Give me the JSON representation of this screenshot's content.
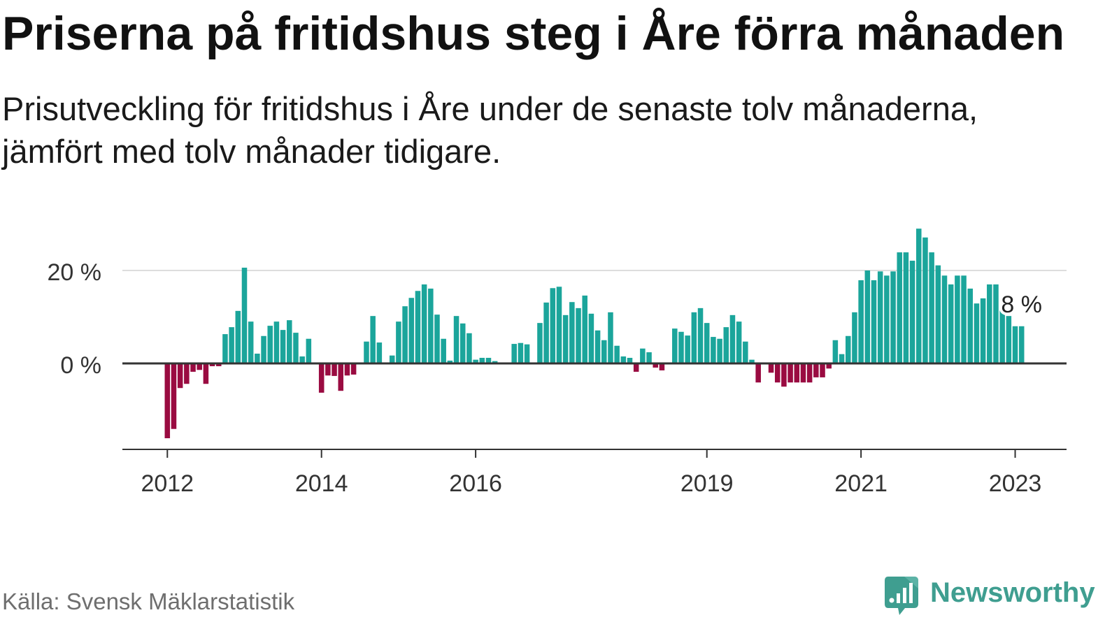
{
  "logo": {
    "text": "Newsworthy",
    "icon": "newsworthy-logo-icon",
    "color": "#3f9e90"
  },
  "chart_data": {
    "type": "bar",
    "title": "Priserna på fritidshus steg i Åre förra månaden",
    "subtitle": "Prisutveckling för fritidshus i Åre under de senaste tolv månaderna, jämfört med tolv månader tidigare.",
    "source": "Källa: Svensk Mäklarstatistik",
    "x": [
      "2012-01",
      "2012-02",
      "2012-03",
      "2012-04",
      "2012-05",
      "2012-06",
      "2012-07",
      "2012-08",
      "2012-09",
      "2012-10",
      "2012-11",
      "2012-12",
      "2013-01",
      "2013-02",
      "2013-03",
      "2013-04",
      "2013-05",
      "2013-06",
      "2013-07",
      "2013-08",
      "2013-09",
      "2013-10",
      "2013-11",
      "2013-12",
      "2014-01",
      "2014-02",
      "2014-03",
      "2014-04",
      "2014-05",
      "2014-06",
      "2014-07",
      "2014-08",
      "2014-09",
      "2014-10",
      "2014-11",
      "2014-12",
      "2015-01",
      "2015-02",
      "2015-03",
      "2015-04",
      "2015-05",
      "2015-06",
      "2015-07",
      "2015-08",
      "2015-09",
      "2015-10",
      "2015-11",
      "2015-12",
      "2016-01",
      "2016-02",
      "2016-03",
      "2016-04",
      "2016-05",
      "2016-06",
      "2016-07",
      "2016-08",
      "2016-09",
      "2016-10",
      "2016-11",
      "2016-12",
      "2017-01",
      "2017-02",
      "2017-03",
      "2017-04",
      "2017-05",
      "2017-06",
      "2017-07",
      "2017-08",
      "2017-09",
      "2017-10",
      "2017-11",
      "2017-12",
      "2018-01",
      "2018-02",
      "2018-03",
      "2018-04",
      "2018-05",
      "2018-06",
      "2018-07",
      "2018-08",
      "2018-09",
      "2018-10",
      "2018-11",
      "2018-12",
      "2019-01",
      "2019-02",
      "2019-03",
      "2019-04",
      "2019-05",
      "2019-06",
      "2019-07",
      "2019-08",
      "2019-09",
      "2019-10",
      "2019-11",
      "2019-12",
      "2020-01",
      "2020-02",
      "2020-03",
      "2020-04",
      "2020-05",
      "2020-06",
      "2020-07",
      "2020-08",
      "2020-09",
      "2020-10",
      "2020-11",
      "2020-12",
      "2021-01",
      "2021-02",
      "2021-03",
      "2021-04",
      "2021-05",
      "2021-06",
      "2021-07",
      "2021-08",
      "2021-09",
      "2021-10",
      "2021-11",
      "2021-12",
      "2022-01",
      "2022-02",
      "2022-03",
      "2022-04",
      "2022-05",
      "2022-06",
      "2022-07",
      "2022-08",
      "2022-09",
      "2022-10",
      "2022-11",
      "2022-12",
      "2023-01",
      "2023-02"
    ],
    "values": [
      -16.1,
      -14.1,
      -5.3,
      -4.4,
      -1.8,
      -1.4,
      -4.4,
      -0.6,
      -0.6,
      6.3,
      7.8,
      11.3,
      20.6,
      9.0,
      2.1,
      5.9,
      8.1,
      9.0,
      7.2,
      9.3,
      6.6,
      1.5,
      5.3,
      0,
      -6.3,
      -2.6,
      -2.7,
      -5.9,
      -2.6,
      -2.4,
      0,
      4.7,
      10.2,
      4.5,
      0,
      1.7,
      9.0,
      12.3,
      14.1,
      15.6,
      17.0,
      16.1,
      10.5,
      5.3,
      0.6,
      10.2,
      8.6,
      6.5,
      0.8,
      1.2,
      1.2,
      0.5,
      0,
      0,
      4.2,
      4.4,
      4.1,
      0,
      8.7,
      13.1,
      16.2,
      16.5,
      10.4,
      13.2,
      11.9,
      14.6,
      10.7,
      7.1,
      5.0,
      11.0,
      3.8,
      1.5,
      1.2,
      -1.8,
      3.2,
      2.4,
      -0.9,
      -1.5,
      0,
      7.5,
      6.8,
      6.0,
      11.0,
      11.9,
      8.7,
      5.7,
      5.3,
      7.8,
      10.4,
      9.0,
      4.7,
      0.8,
      -4.1,
      0,
      -2.0,
      -4.1,
      -5.0,
      -4.1,
      -4.1,
      -4.1,
      -4.1,
      -3.0,
      -3.0,
      -1.1,
      5.0,
      2.0,
      5.9,
      11.0,
      17.9,
      20.0,
      17.9,
      19.8,
      18.9,
      19.8,
      23.9,
      23.9,
      22.1,
      29.0,
      27.1,
      23.9,
      21.1,
      18.9,
      17.0,
      18.9,
      18.9,
      16.1,
      12.9,
      14.0,
      17.0,
      17.0,
      12.0,
      10.2,
      8.0,
      8.0
    ],
    "xlim": [
      "2011-06",
      "2023-09"
    ],
    "ylim": [
      -18.5,
      30
    ],
    "x_ticks": [
      {
        "label": "2012",
        "x": "2012-01"
      },
      {
        "label": "2014",
        "x": "2014-01"
      },
      {
        "label": "2016",
        "x": "2016-01"
      },
      {
        "label": "2019",
        "x": "2019-01"
      },
      {
        "label": "2021",
        "x": "2021-01"
      },
      {
        "label": "2023",
        "x": "2023-01"
      }
    ],
    "y_ticks": [
      {
        "label": "0 %",
        "value": 0
      },
      {
        "label": "20 %",
        "value": 20
      }
    ],
    "annotation": {
      "text": "8 %",
      "x": "2023-02",
      "value": 8
    },
    "grid": true,
    "colors": {
      "positive": "#1ba59b",
      "negative": "#9a0b41",
      "grid": "#dddddd",
      "axis": "#333333"
    }
  }
}
